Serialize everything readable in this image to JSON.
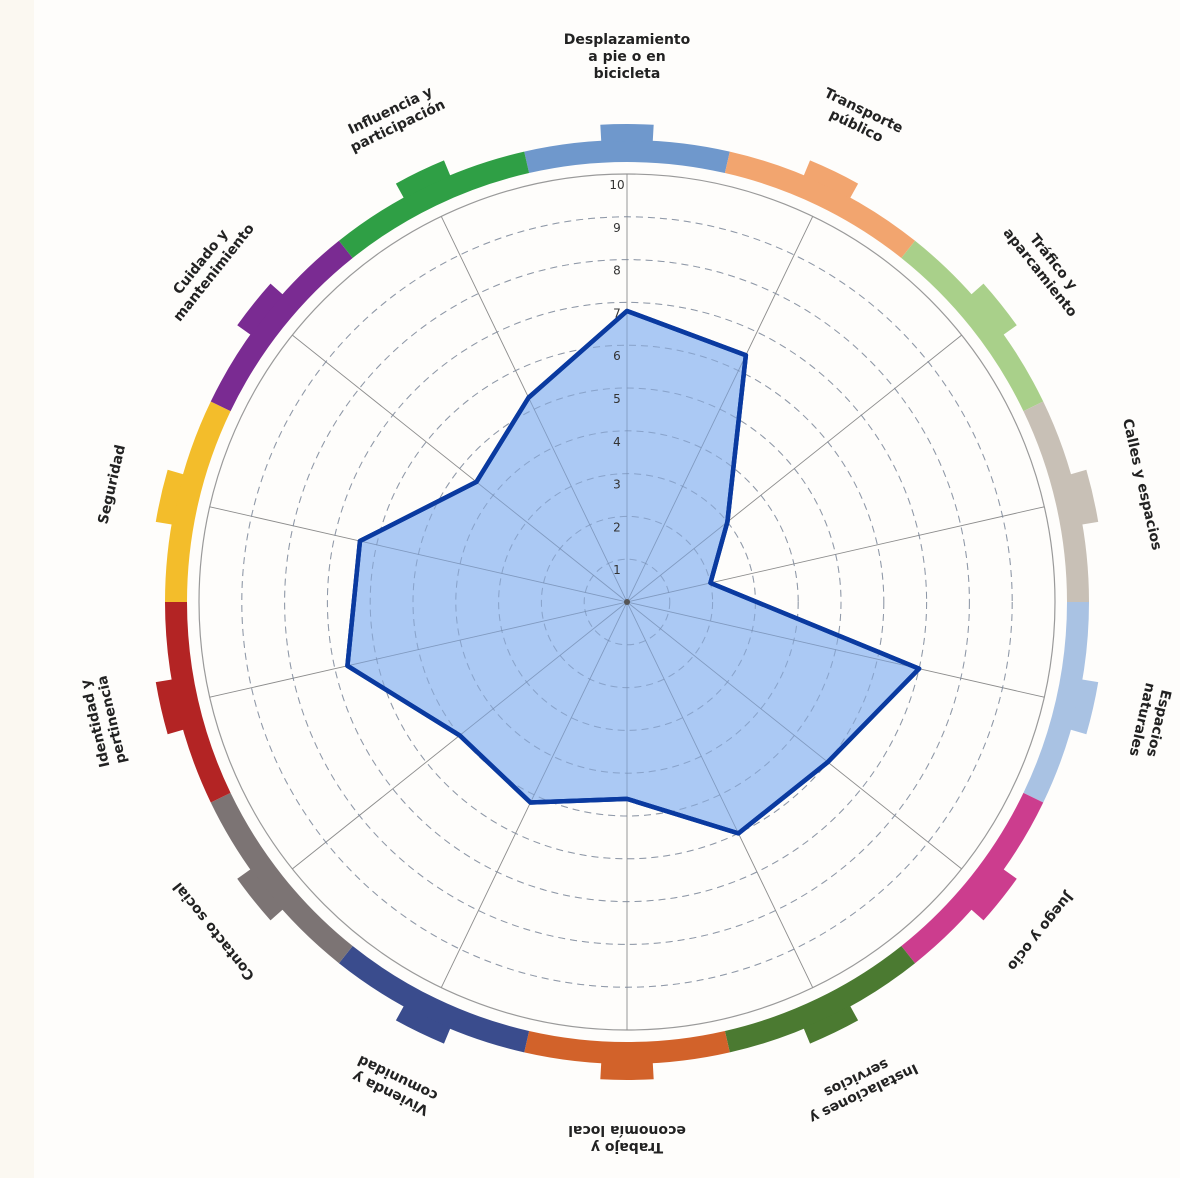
{
  "chart_data": {
    "type": "radar",
    "title": "",
    "rlim": [
      0,
      10
    ],
    "ticks": [
      "1",
      "2",
      "3",
      "4",
      "5",
      "6",
      "7",
      "8",
      "9",
      "10"
    ],
    "categories": [
      {
        "lines": [
          "Desplazamiento",
          "a pie o en",
          "bicicleta"
        ],
        "color": "#6f98cc",
        "value": 6.8
      },
      {
        "lines": [
          "Transporte",
          "público"
        ],
        "color": "#f2a56f",
        "value": 6.4
      },
      {
        "lines": [
          "Tráfico y",
          "aparcamiento"
        ],
        "color": "#a9d08a",
        "value": 3.0
      },
      {
        "lines": [
          "Calles y espacios"
        ],
        "color": "#c8c0b6",
        "value": 2.0
      },
      {
        "lines": [
          "Espacios",
          "naturales"
        ],
        "color": "#a9c2e3",
        "value": 7.0
      },
      {
        "lines": [
          "Juego y ocio"
        ],
        "color": "#cc3d8e",
        "value": 6.0
      },
      {
        "lines": [
          "Instalaciones y",
          "servicios"
        ],
        "color": "#4b7a31",
        "value": 6.0
      },
      {
        "lines": [
          "Trabajo y",
          "economía local"
        ],
        "color": "#d2622a",
        "value": 4.6
      },
      {
        "lines": [
          "Vivienda y",
          "comunidad"
        ],
        "color": "#3a4c8d",
        "value": 5.2
      },
      {
        "lines": [
          "Contacto social"
        ],
        "color": "#7c7474",
        "value": 5.0
      },
      {
        "lines": [
          "Identidad y",
          "pertinencia"
        ],
        "color": "#b32424",
        "value": 6.7
      },
      {
        "lines": [
          "Seguridad"
        ],
        "color": "#f3bd2b",
        "value": 6.4
      },
      {
        "lines": [
          "Cuidado y",
          "mantenimiento"
        ],
        "color": "#7a2b92",
        "value": 4.5
      },
      {
        "lines": [
          "Influencia y",
          "participación"
        ],
        "color": "#2f9f45",
        "value": 5.3
      }
    ],
    "fill_color": "#9cc0f2",
    "line_color": "#0a3aa0",
    "grid": "dashed",
    "legend": "none"
  }
}
